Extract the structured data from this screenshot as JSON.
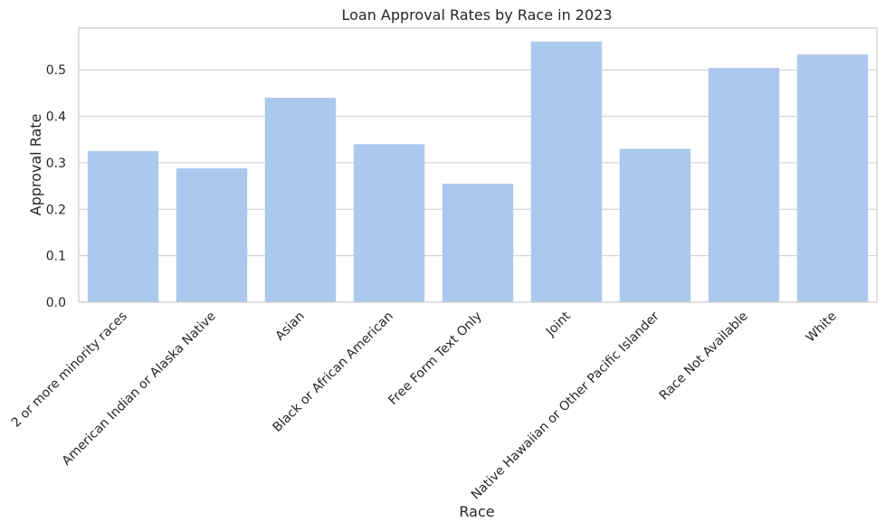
{
  "chart_data": {
    "type": "bar",
    "title": "Loan Approval Rates by Race in 2023",
    "xlabel": "Race",
    "ylabel": "Approval Rate",
    "categories": [
      "2 or more minority races",
      "American Indian or Alaska Native",
      "Asian",
      "Black or African American",
      "Free Form Text Only",
      "Joint",
      "Native Hawaiian or Other Pacific Islander",
      "Race Not Available",
      "White"
    ],
    "values": [
      0.325,
      0.288,
      0.44,
      0.34,
      0.255,
      0.561,
      0.33,
      0.504,
      0.533
    ],
    "ylim": [
      0,
      0.59
    ],
    "yticks": [
      "0.0",
      "0.1",
      "0.2",
      "0.3",
      "0.4",
      "0.5"
    ],
    "grid": true,
    "colors": {
      "bar": "#abc9ee",
      "grid": "#cccccc",
      "spine": "#cccccc"
    }
  }
}
